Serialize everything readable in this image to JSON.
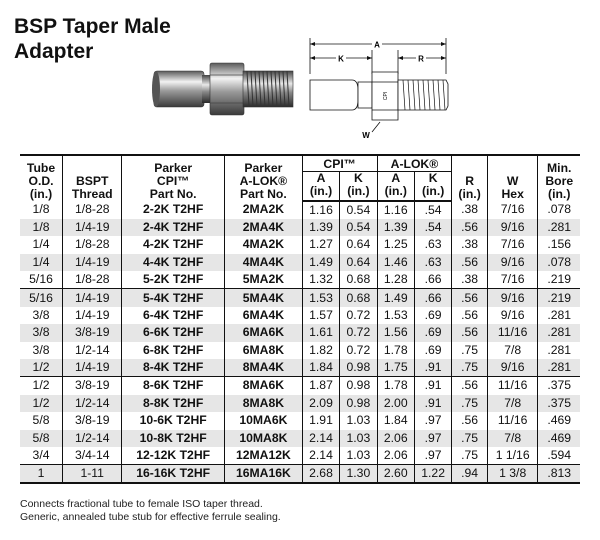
{
  "title_line1": "BSP Taper Male",
  "title_line2": "Adapter",
  "drawing_labels": {
    "a": "A",
    "k": "K",
    "r": "R",
    "w": "W",
    "stamp": "CPI"
  },
  "table": {
    "headers": {
      "tube": [
        "Tube",
        "O.D.",
        "(in.)"
      ],
      "bspt": "BSPT Thread",
      "bspt_lines": [
        "BSPT",
        "Thread"
      ],
      "parker_cpi": [
        "Parker",
        "CPI™",
        "Part No."
      ],
      "parker_alok": [
        "Parker",
        "A-LOK®",
        "Part No."
      ],
      "cpi_group": "CPI™",
      "alok_group": "A-LOK®",
      "a": "A",
      "k": "K",
      "unit": "(in.)",
      "r": "R",
      "w_hex": [
        "W",
        "Hex"
      ],
      "min_bore": [
        "Min.",
        "Bore",
        "(in.)"
      ]
    },
    "rows": [
      {
        "od": "1/8",
        "thread": "1/8-28",
        "cpi": "2-2K T2HF",
        "alok": "2MA2K",
        "cpi_a": "1.16",
        "cpi_k": "0.54",
        "alok_a": "1.16",
        "alok_k": ".54",
        "r": ".38",
        "w": "7/16",
        "bore": ".078"
      },
      {
        "od": "1/8",
        "thread": "1/4-19",
        "cpi": "2-4K T2HF",
        "alok": "2MA4K",
        "cpi_a": "1.39",
        "cpi_k": "0.54",
        "alok_a": "1.39",
        "alok_k": ".54",
        "r": ".56",
        "w": "9/16",
        "bore": ".281"
      },
      {
        "od": "1/4",
        "thread": "1/8-28",
        "cpi": "4-2K T2HF",
        "alok": "4MA2K",
        "cpi_a": "1.27",
        "cpi_k": "0.64",
        "alok_a": "1.25",
        "alok_k": ".63",
        "r": ".38",
        "w": "7/16",
        "bore": ".156"
      },
      {
        "od": "1/4",
        "thread": "1/4-19",
        "cpi": "4-4K T2HF",
        "alok": "4MA4K",
        "cpi_a": "1.49",
        "cpi_k": "0.64",
        "alok_a": "1.46",
        "alok_k": ".63",
        "r": ".56",
        "w": "9/16",
        "bore": ".078"
      },
      {
        "od": "5/16",
        "thread": "1/8-28",
        "cpi": "5-2K T2HF",
        "alok": "5MA2K",
        "cpi_a": "1.32",
        "cpi_k": "0.68",
        "alok_a": "1.28",
        "alok_k": ".66",
        "r": ".38",
        "w": "7/16",
        "bore": ".219"
      },
      {
        "od": "5/16",
        "thread": "1/4-19",
        "cpi": "5-4K T2HF",
        "alok": "5MA4K",
        "cpi_a": "1.53",
        "cpi_k": "0.68",
        "alok_a": "1.49",
        "alok_k": ".66",
        "r": ".56",
        "w": "9/16",
        "bore": ".219"
      },
      {
        "od": "3/8",
        "thread": "1/4-19",
        "cpi": "6-4K T2HF",
        "alok": "6MA4K",
        "cpi_a": "1.57",
        "cpi_k": "0.72",
        "alok_a": "1.53",
        "alok_k": ".69",
        "r": ".56",
        "w": "9/16",
        "bore": ".281"
      },
      {
        "od": "3/8",
        "thread": "3/8-19",
        "cpi": "6-6K T2HF",
        "alok": "6MA6K",
        "cpi_a": "1.61",
        "cpi_k": "0.72",
        "alok_a": "1.56",
        "alok_k": ".69",
        "r": ".56",
        "w": "11/16",
        "bore": ".281"
      },
      {
        "od": "3/8",
        "thread": "1/2-14",
        "cpi": "6-8K T2HF",
        "alok": "6MA8K",
        "cpi_a": "1.82",
        "cpi_k": "0.72",
        "alok_a": "1.78",
        "alok_k": ".69",
        "r": ".75",
        "w": "7/8",
        "bore": ".281"
      },
      {
        "od": "1/2",
        "thread": "1/4-19",
        "cpi": "8-4K T2HF",
        "alok": "8MA4K",
        "cpi_a": "1.84",
        "cpi_k": "0.98",
        "alok_a": "1.75",
        "alok_k": ".91",
        "r": ".75",
        "w": "9/16",
        "bore": ".281"
      },
      {
        "od": "1/2",
        "thread": "3/8-19",
        "cpi": "8-6K T2HF",
        "alok": "8MA6K",
        "cpi_a": "1.87",
        "cpi_k": "0.98",
        "alok_a": "1.78",
        "alok_k": ".91",
        "r": ".56",
        "w": "11/16",
        "bore": ".375"
      },
      {
        "od": "1/2",
        "thread": "1/2-14",
        "cpi": "8-8K T2HF",
        "alok": "8MA8K",
        "cpi_a": "2.09",
        "cpi_k": "0.98",
        "alok_a": "2.00",
        "alok_k": ".91",
        "r": ".75",
        "w": "7/8",
        "bore": ".375"
      },
      {
        "od": "5/8",
        "thread": "3/8-19",
        "cpi": "10-6K T2HF",
        "alok": "10MA6K",
        "cpi_a": "1.91",
        "cpi_k": "1.03",
        "alok_a": "1.84",
        "alok_k": ".97",
        "r": ".56",
        "w": "11/16",
        "bore": ".469"
      },
      {
        "od": "5/8",
        "thread": "1/2-14",
        "cpi": "10-8K T2HF",
        "alok": "10MA8K",
        "cpi_a": "2.14",
        "cpi_k": "1.03",
        "alok_a": "2.06",
        "alok_k": ".97",
        "r": ".75",
        "w": "7/8",
        "bore": ".469"
      },
      {
        "od": "3/4",
        "thread": "3/4-14",
        "cpi": "12-12K T2HF",
        "alok": "12MA12K",
        "cpi_a": "2.14",
        "cpi_k": "1.03",
        "alok_a": "2.06",
        "alok_k": ".97",
        "r": ".75",
        "w": "1 1/16",
        "bore": ".594"
      },
      {
        "od": "1",
        "thread": "1-11",
        "cpi": "16-16K T2HF",
        "alok": "16MA16K",
        "cpi_a": "2.68",
        "cpi_k": "1.30",
        "alok_a": "2.60",
        "alok_k": "1.22",
        "r": ".94",
        "w": "1 3/8",
        "bore": ".813"
      }
    ]
  },
  "notes": [
    "Connects fractional tube to female ISO taper thread.",
    "Generic, annealed tube stub for effective ferrule sealing."
  ]
}
